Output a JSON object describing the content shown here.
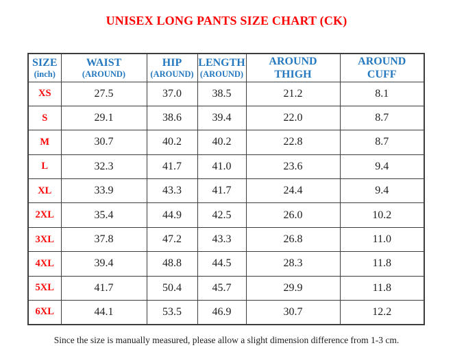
{
  "title": "UNISEX LONG PANTS SIZE CHART (CK)",
  "footer_note": "Since the size is manually measured, please allow a slight dimension difference from 1-3 cm.",
  "colors": {
    "title_red": "#FE0000",
    "header_blue": "#2478C0",
    "size_label_red": "#FB0707",
    "value_black": "#1d1d1d",
    "border_gray": "#3c3c3c"
  },
  "table": {
    "columns": [
      {
        "key": "size",
        "line1": "SIZE",
        "line2": "(inch)"
      },
      {
        "key": "waist",
        "line1": "WAIST",
        "line2": "(AROUND)"
      },
      {
        "key": "hip",
        "line1": "HIP",
        "line2": "(AROUND)"
      },
      {
        "key": "length",
        "line1": "LENGTH",
        "line2": "(AROUND)"
      },
      {
        "key": "thigh",
        "line1": "AROUND",
        "line2": "THIGH"
      },
      {
        "key": "cuff",
        "line1": "AROUND",
        "line2": "CUFF"
      }
    ],
    "rows": [
      {
        "size": "XS",
        "values": [
          "27.5",
          "37.0",
          "38.5",
          "21.2",
          "8.1"
        ]
      },
      {
        "size": "S",
        "values": [
          "29.1",
          "38.6",
          "39.4",
          "22.0",
          "8.7"
        ]
      },
      {
        "size": "M",
        "values": [
          "30.7",
          "40.2",
          "40.2",
          "22.8",
          "8.7"
        ]
      },
      {
        "size": "L",
        "values": [
          "32.3",
          "41.7",
          "41.0",
          "23.6",
          "9.4"
        ]
      },
      {
        "size": "XL",
        "values": [
          "33.9",
          "43.3",
          "41.7",
          "24.4",
          "9.4"
        ]
      },
      {
        "size": "2XL",
        "values": [
          "35.4",
          "44.9",
          "42.5",
          "26.0",
          "10.2"
        ]
      },
      {
        "size": "3XL",
        "values": [
          "37.8",
          "47.2",
          "43.3",
          "26.8",
          "11.0"
        ]
      },
      {
        "size": "4XL",
        "values": [
          "39.4",
          "48.8",
          "44.5",
          "28.3",
          "11.8"
        ]
      },
      {
        "size": "5XL",
        "values": [
          "41.7",
          "50.4",
          "45.7",
          "29.9",
          "11.8"
        ]
      },
      {
        "size": "6XL",
        "values": [
          "44.1",
          "53.5",
          "46.9",
          "30.7",
          "12.2"
        ]
      }
    ]
  },
  "chart_data": {
    "type": "table",
    "title": "UNISEX LONG PANTS SIZE CHART (CK)",
    "columns": [
      "SIZE (inch)",
      "WAIST (AROUND)",
      "HIP (AROUND)",
      "LENGTH (AROUND)",
      "AROUND THIGH",
      "AROUND CUFF"
    ],
    "rows": [
      [
        "XS",
        27.5,
        37.0,
        38.5,
        21.2,
        8.1
      ],
      [
        "S",
        29.1,
        38.6,
        39.4,
        22.0,
        8.7
      ],
      [
        "M",
        30.7,
        40.2,
        40.2,
        22.8,
        8.7
      ],
      [
        "L",
        32.3,
        41.7,
        41.0,
        23.6,
        9.4
      ],
      [
        "XL",
        33.9,
        43.3,
        41.7,
        24.4,
        9.4
      ],
      [
        "2XL",
        35.4,
        44.9,
        42.5,
        26.0,
        10.2
      ],
      [
        "3XL",
        37.8,
        47.2,
        43.3,
        26.8,
        11.0
      ],
      [
        "4XL",
        39.4,
        48.8,
        44.5,
        28.3,
        11.8
      ],
      [
        "5XL",
        41.7,
        50.4,
        45.7,
        29.9,
        11.8
      ],
      [
        "6XL",
        44.1,
        53.5,
        46.9,
        30.7,
        12.2
      ]
    ],
    "units": "inch",
    "note": "Since the size is manually measured, please allow a slight dimension difference from 1-3 cm."
  }
}
